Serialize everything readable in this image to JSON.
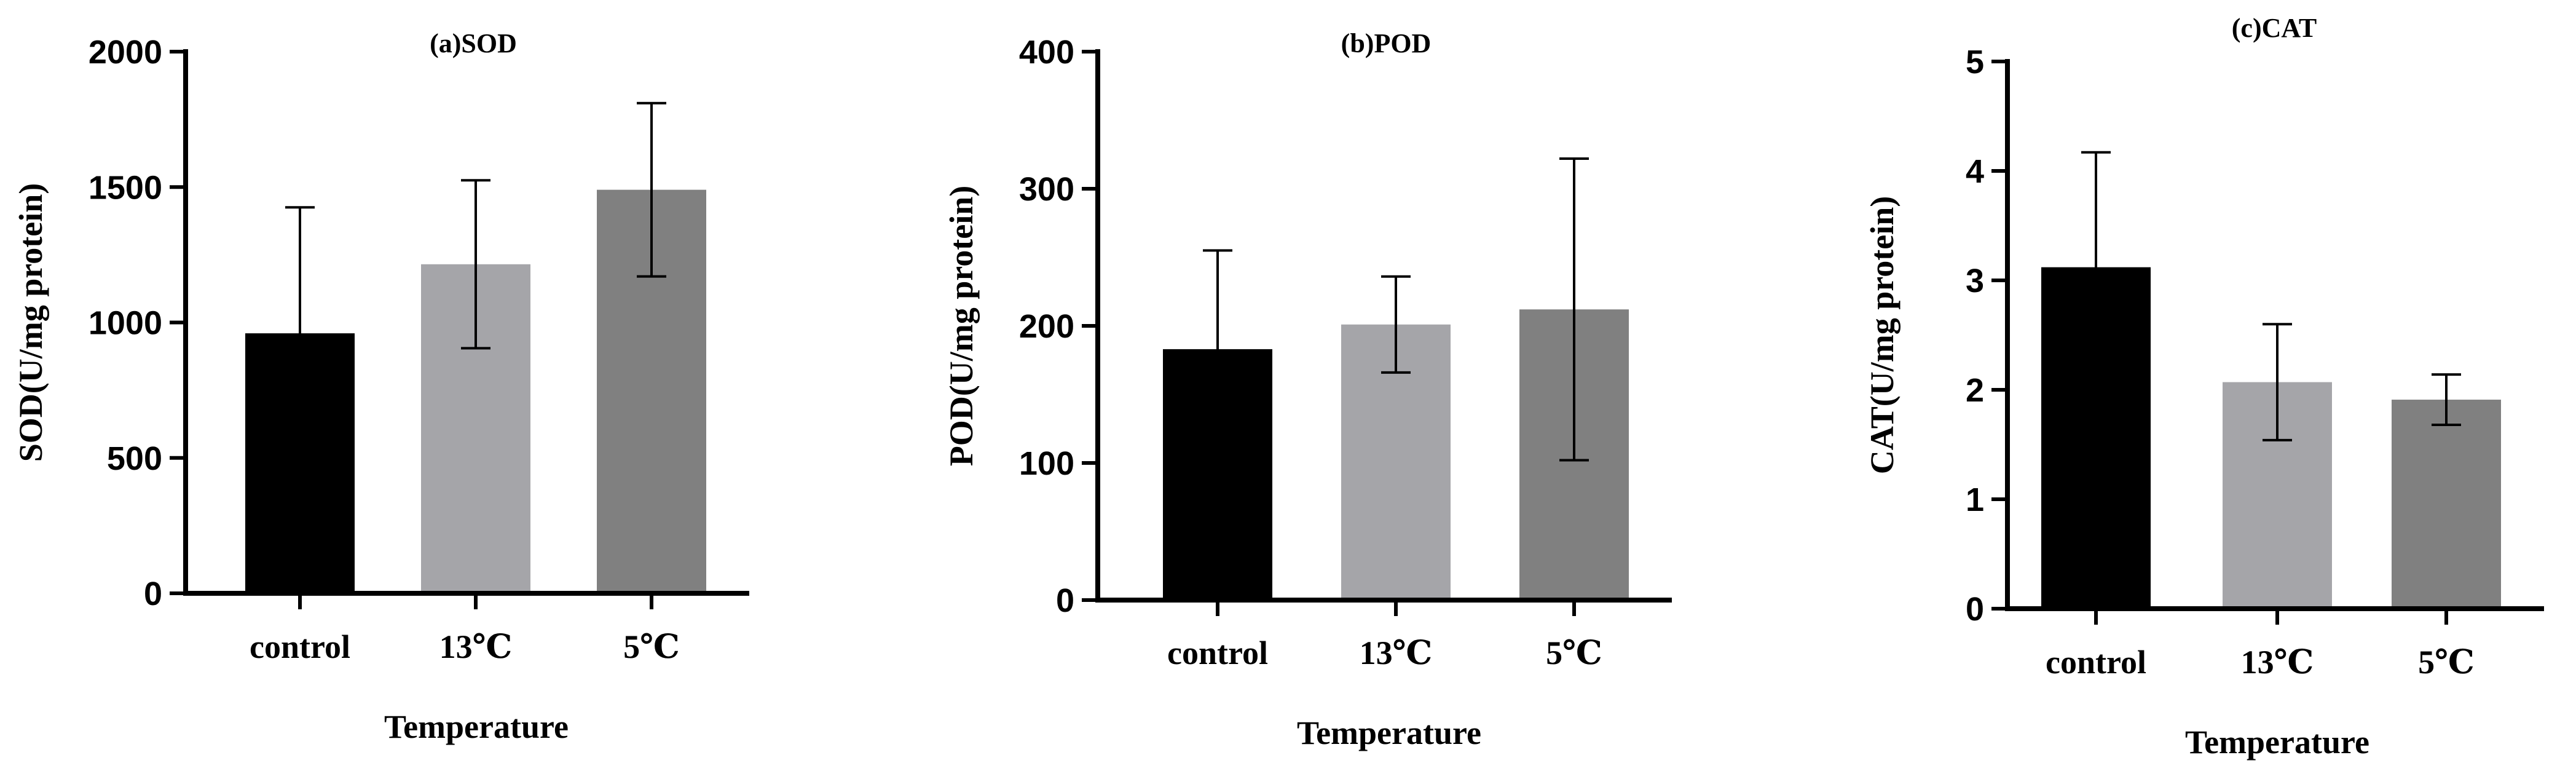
{
  "colors": {
    "control": "#000000",
    "13C": "#a5a5a9",
    "5C": "#808080",
    "axis": "#000000"
  },
  "chart_data": [
    {
      "type": "bar",
      "title": "(a)SOD",
      "xlabel": "Temperature",
      "ylabel": "SOD(U/mg protein)",
      "categories": [
        "control",
        "13℃",
        "5℃"
      ],
      "values": [
        960,
        1215,
        1490
      ],
      "errors": [
        465,
        310,
        320
      ],
      "ylim": [
        0,
        2000
      ],
      "yticks": [
        0,
        500,
        1000,
        1500,
        2000
      ],
      "ytick_labels": [
        "0",
        "500",
        "1000",
        "1500",
        "2000"
      ]
    },
    {
      "type": "bar",
      "title": "(b)POD",
      "xlabel": "Temperature",
      "ylabel": "POD(U/mg protein)",
      "categories": [
        "control",
        "13℃",
        "5℃"
      ],
      "values": [
        183,
        201,
        212
      ],
      "errors": [
        72,
        35,
        110
      ],
      "ylim": [
        0,
        400
      ],
      "yticks": [
        0,
        100,
        200,
        300,
        400
      ],
      "ytick_labels": [
        "0",
        "100",
        "200",
        "300",
        "400"
      ]
    },
    {
      "type": "bar",
      "title": "(c)CAT",
      "xlabel": "Temperature",
      "ylabel": "CAT(U/mg protein)",
      "categories": [
        "control",
        "13℃",
        "5℃"
      ],
      "values": [
        3.12,
        2.07,
        1.91
      ],
      "errors": [
        1.05,
        0.53,
        0.23
      ],
      "ylim": [
        0,
        5
      ],
      "yticks": [
        0,
        1,
        2,
        3,
        4,
        5
      ],
      "ytick_labels": [
        "0",
        "1",
        "2",
        "3",
        "4",
        "5"
      ]
    }
  ]
}
